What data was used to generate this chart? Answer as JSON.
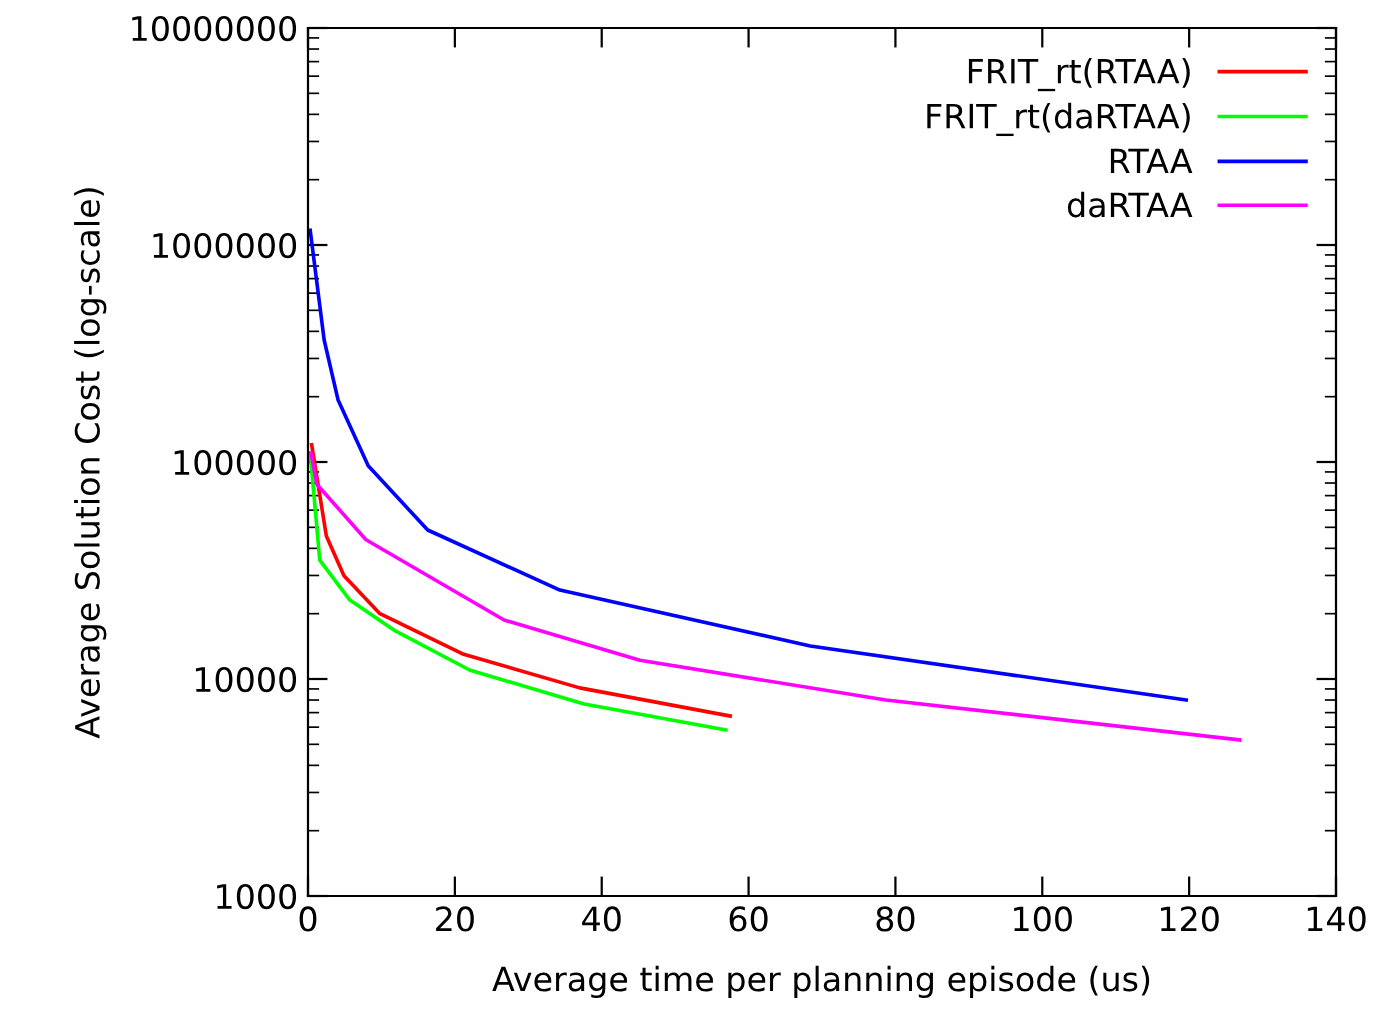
{
  "chart_data": {
    "type": "line",
    "xlabel": "Average time per planning episode (us)",
    "ylabel": "Average Solution Cost (log-scale)",
    "log": "y",
    "legend": "top right",
    "grid": false,
    "line_style": "solid",
    "marker": "none",
    "xlim": [
      0,
      140
    ],
    "xticks": [
      0,
      20,
      40,
      60,
      80,
      100,
      120,
      140
    ],
    "ylim": [
      1000,
      10000000
    ],
    "yticks": [
      1000,
      10000,
      100000,
      1000000,
      10000000
    ],
    "series": [
      {
        "name": "FRIT_rt(RTAA)",
        "color": "#ff0000",
        "x": [
          0.5,
          2.5,
          4.9,
          9.8,
          21.2,
          37,
          57.5
        ],
        "values": [
          120000,
          45600,
          29900,
          20000,
          13000,
          9100,
          6750
        ]
      },
      {
        "name": "FRIT_rt(daRTAA)",
        "color": "#00ff00",
        "x": [
          0.3,
          1.6,
          5.7,
          11.7,
          22,
          37.6,
          56.9
        ],
        "values": [
          110000,
          35300,
          23100,
          16800,
          11000,
          7670,
          5820
        ]
      },
      {
        "name": "RTAA",
        "color": "#0000ff",
        "x": [
          0.3,
          2.2,
          4.1,
          8.2,
          16.3,
          34.3,
          68.4,
          119.6
        ],
        "values": [
          1170000,
          365000,
          193000,
          96000,
          48600,
          25700,
          14200,
          8000
        ]
      },
      {
        "name": "daRTAA",
        "color": "#ff00ff",
        "x": [
          0.4,
          1.2,
          7.9,
          26.7,
          45.2,
          78.7,
          126.9
        ],
        "values": [
          110000,
          79000,
          43800,
          18700,
          12200,
          8000,
          5240
        ]
      }
    ]
  }
}
